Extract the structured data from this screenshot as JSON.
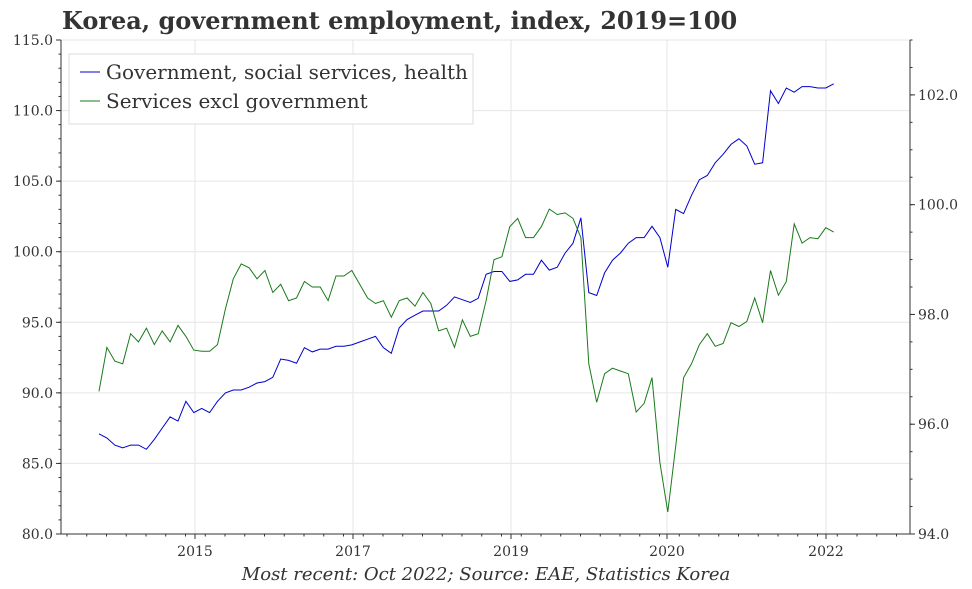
{
  "chart_data": {
    "type": "line",
    "title": "Korea, government employment, index, 2019=100",
    "footer": "Most recent: Oct 2022; Source: EAE, Statistics Korea",
    "xlabel": "",
    "ylabel": "",
    "x_ticks": [
      "2015",
      "2017",
      "2019",
      "2020",
      "2022"
    ],
    "grid": true,
    "legend_position": "top-left",
    "left_axis": {
      "ylim": [
        80,
        115
      ],
      "ticks": [
        "80.0",
        "85.0",
        "90.0",
        "95.0",
        "100.0",
        "105.0",
        "110.0",
        "115.0"
      ]
    },
    "right_axis": {
      "ylim": [
        94,
        103
      ],
      "ticks": [
        "94.0",
        "96.0",
        "98.0",
        "100.0",
        "102.0"
      ]
    },
    "series": [
      {
        "name": "Government, social services, health",
        "axis": "left",
        "color": "#0000cc",
        "values": [
          87.1,
          86.8,
          86.3,
          86.1,
          86.3,
          86.3,
          86.0,
          86.7,
          87.5,
          88.3,
          88.0,
          89.4,
          88.6,
          88.9,
          88.6,
          89.4,
          90.0,
          90.2,
          90.2,
          90.4,
          90.7,
          90.8,
          91.1,
          92.4,
          92.3,
          92.1,
          93.2,
          92.9,
          93.1,
          93.1,
          93.3,
          93.3,
          93.4,
          93.6,
          93.8,
          94.0,
          93.2,
          92.8,
          94.6,
          95.2,
          95.5,
          95.8,
          95.8,
          95.8,
          96.2,
          96.8,
          96.6,
          96.4,
          96.7,
          98.4,
          98.6,
          98.6,
          97.9,
          98.0,
          98.4,
          98.4,
          99.4,
          98.7,
          98.9,
          99.9,
          100.6,
          102.4,
          97.1,
          96.9,
          98.5,
          99.4,
          99.9,
          100.6,
          101.0,
          101.0,
          101.8,
          101.0,
          98.9,
          103.0,
          102.7,
          104.0,
          105.1,
          105.4,
          106.3,
          106.9,
          107.6,
          108.0,
          107.5,
          106.2,
          106.3,
          111.4,
          110.5,
          111.6,
          111.3,
          111.7,
          111.7,
          111.6,
          111.6,
          111.9
        ]
      },
      {
        "name": "Services excl government",
        "axis": "right",
        "color": "#1a7a1a",
        "values": [
          96.6,
          97.4,
          97.15,
          97.1,
          97.65,
          97.5,
          97.75,
          97.45,
          97.7,
          97.5,
          97.8,
          97.6,
          97.35,
          97.33,
          97.33,
          97.45,
          98.1,
          98.65,
          98.92,
          98.85,
          98.65,
          98.8,
          98.4,
          98.55,
          98.25,
          98.3,
          98.6,
          98.5,
          98.5,
          98.25,
          98.7,
          98.7,
          98.8,
          98.55,
          98.3,
          98.2,
          98.25,
          97.95,
          98.25,
          98.3,
          98.15,
          98.4,
          98.2,
          97.7,
          97.75,
          97.4,
          97.9,
          97.6,
          97.65,
          98.25,
          99.0,
          99.05,
          99.6,
          99.75,
          99.4,
          99.4,
          99.6,
          99.92,
          99.82,
          99.85,
          99.75,
          99.4,
          97.1,
          96.4,
          96.92,
          97.02,
          96.97,
          96.92,
          96.22,
          96.38,
          96.85,
          95.3,
          94.4,
          95.6,
          96.85,
          97.1,
          97.45,
          97.65,
          97.42,
          97.47,
          97.85,
          97.78,
          97.87,
          98.3,
          97.85,
          98.8,
          98.35,
          98.6,
          99.65,
          99.3,
          99.4,
          99.38,
          99.58,
          99.5
        ]
      }
    ]
  }
}
